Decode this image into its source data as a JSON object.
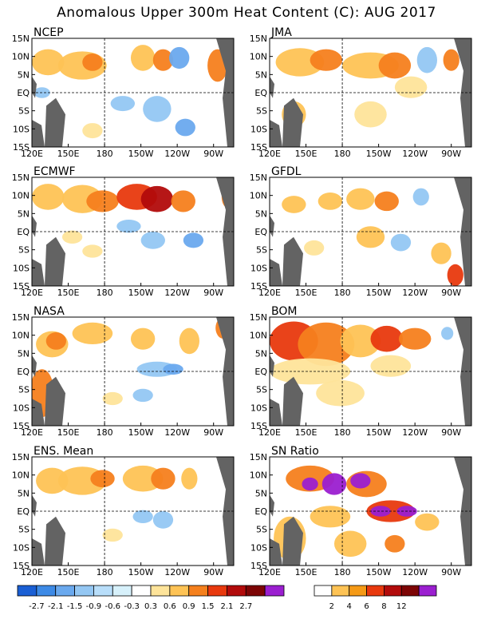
{
  "title": "Anomalous Upper 300m Heat Content (C): AUG 2017",
  "lat_labels": [
    "15N",
    "10N",
    "5N",
    "EQ",
    "5S",
    "10S",
    "15S"
  ],
  "lon_labels": [
    "120E",
    "150E",
    "180",
    "150W",
    "120W",
    "90W"
  ],
  "panels": [
    {
      "name": "NCEP"
    },
    {
      "name": "JMA"
    },
    {
      "name": "ECMWF"
    },
    {
      "name": "GFDL"
    },
    {
      "name": "NASA"
    },
    {
      "name": "BOM"
    },
    {
      "name": "ENS. Mean"
    },
    {
      "name": "SN Ratio"
    }
  ],
  "anomaly_scale": {
    "labels": [
      "-2.7",
      "-2.1",
      "-1.5",
      "-0.9",
      "-0.6",
      "-0.3",
      "0.3",
      "0.6",
      "0.9",
      "1.5",
      "2.1",
      "2.7"
    ],
    "colors": [
      "#1a5fd4",
      "#3d8ae6",
      "#6aa9ee",
      "#94c7f3",
      "#b8defa",
      "#d7f1fb",
      "#ffffff",
      "#fee49a",
      "#fec355",
      "#f5801d",
      "#e8390e",
      "#b20b0b",
      "#7d0505",
      "#9b1fd0"
    ]
  },
  "snr_scale": {
    "labels": [
      "2",
      "4",
      "6",
      "8",
      "12"
    ],
    "colors": [
      "#ffffff",
      "#fec355",
      "#f59a16",
      "#e8390e",
      "#b20b0b",
      "#7d0505",
      "#9b1fd0"
    ]
  },
  "colors": {
    "land": "#636363",
    "warm": "#fec355",
    "hot": "#f5801d",
    "cool": "#94c7f3"
  }
}
